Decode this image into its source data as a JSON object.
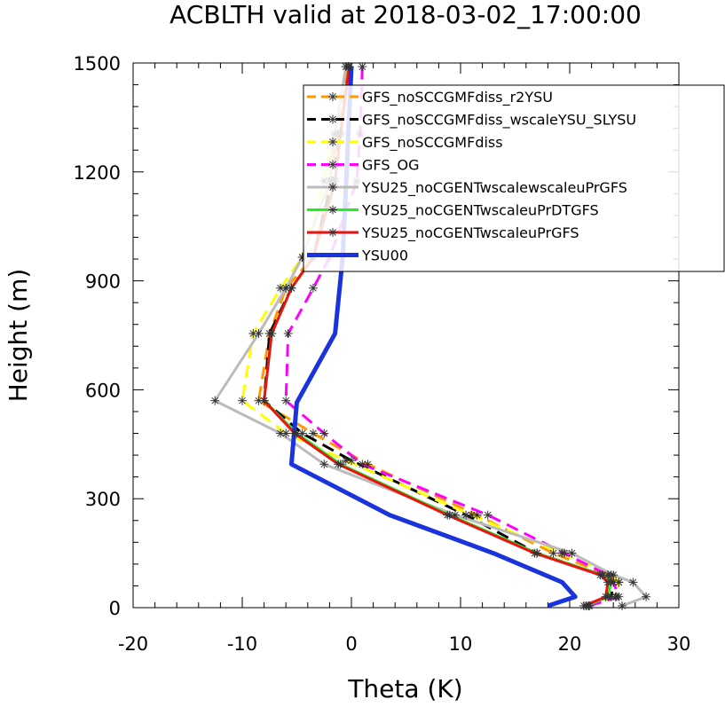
{
  "chart_data": {
    "type": "line",
    "title": "ACBLTH valid at 2018-03-02_17:00:00",
    "xlabel": "Theta (K)",
    "ylabel": "Height (m)",
    "xlim": [
      -20,
      30
    ],
    "ylim": [
      0,
      1500
    ],
    "xticks": [
      "-20",
      "-10",
      "0",
      "10",
      "20",
      "30"
    ],
    "yticks": [
      "0",
      "300",
      "600",
      "900",
      "1200",
      "1500"
    ],
    "grid": false,
    "legend_position": "top-right",
    "series": [
      {
        "name": "GFS_noSCCGMFdiss_r2YSU",
        "color": "#ff9900",
        "dash": "dashed",
        "marker": "asterisk",
        "x": [
          21.8,
          24.2,
          24.5,
          23.5,
          18.5,
          11.5,
          1.5,
          -3.5,
          -8.5,
          -7.5,
          -6.0,
          -3.5,
          -2.0,
          -1.2,
          -0.3
        ],
        "y": [
          5,
          30,
          70,
          90,
          150,
          255,
          395,
          480,
          570,
          755,
          880,
          965,
          1175,
          1305,
          1490
        ]
      },
      {
        "name": "GFS_noSCCGMFdiss_wscaleYSU_SLYSU",
        "color": "#000000",
        "dash": "dashed",
        "marker": "asterisk",
        "x": [
          21.5,
          23.8,
          24.0,
          23.0,
          17.0,
          10.5,
          0.0,
          -4.5,
          -8.0,
          -7.5,
          -5.5,
          -3.5,
          -1.8,
          -1.0,
          -0.2
        ],
        "y": [
          5,
          30,
          70,
          90,
          150,
          255,
          405,
          480,
          570,
          755,
          880,
          965,
          1175,
          1305,
          1490
        ]
      },
      {
        "name": "GFS_noSCCGMFdiss",
        "color": "#ffff00",
        "dash": "dashed",
        "marker": "asterisk",
        "x": [
          21.7,
          24.3,
          24.5,
          23.8,
          19.3,
          11.0,
          -0.5,
          -6.0,
          -10.0,
          -9.0,
          -6.5,
          -4.5,
          -2.5,
          -1.5,
          -0.5
        ],
        "y": [
          5,
          30,
          70,
          90,
          150,
          255,
          405,
          480,
          570,
          755,
          880,
          965,
          1175,
          1305,
          1490
        ]
      },
      {
        "name": "GFS_OG",
        "color": "#ff00ff",
        "dash": "dashed",
        "marker": "asterisk",
        "x": [
          21.8,
          24.5,
          24.0,
          23.5,
          19.5,
          12.5,
          1.0,
          -2.5,
          -6.0,
          -5.8,
          -3.5,
          -2.0,
          0.5,
          0.8,
          1.0
        ],
        "y": [
          5,
          30,
          70,
          90,
          150,
          255,
          395,
          480,
          570,
          755,
          880,
          965,
          1175,
          1305,
          1490
        ]
      },
      {
        "name": "YSU25_noCGENTwscalewscaleuPrGFS",
        "color": "#bbbbbb",
        "dash": "solid",
        "marker": "asterisk",
        "x": [
          24.8,
          27.0,
          25.8,
          24.0,
          20.2,
          9.5,
          -2.5,
          -6.5,
          -12.5,
          -8.5,
          -6.0,
          -4.5,
          -2.0,
          -1.5,
          -0.5
        ],
        "y": [
          5,
          30,
          70,
          90,
          150,
          255,
          395,
          480,
          570,
          755,
          880,
          965,
          1175,
          1305,
          1490
        ]
      },
      {
        "name": "YSU25_noCGENTwscaleuPrDTGFS",
        "color": "#22ee22",
        "dash": "solid",
        "marker": "asterisk",
        "x": [
          21.5,
          23.5,
          23.8,
          23.0,
          17.0,
          9.0,
          -1.0,
          -5.0,
          -8.0,
          -7.3,
          -5.5,
          -3.5,
          -1.5,
          -1.0,
          -0.2
        ],
        "y": [
          5,
          30,
          70,
          90,
          150,
          255,
          395,
          480,
          570,
          755,
          880,
          965,
          1175,
          1305,
          1490
        ]
      },
      {
        "name": "YSU25_noCGENTwscaleuPrGFS",
        "color": "#ee1111",
        "dash": "solid",
        "marker": "asterisk",
        "x": [
          21.3,
          23.3,
          23.5,
          22.8,
          16.8,
          8.8,
          -1.2,
          -5.2,
          -8.0,
          -7.3,
          -5.5,
          -3.5,
          -1.5,
          -1.0,
          -0.2
        ],
        "y": [
          5,
          30,
          70,
          90,
          150,
          255,
          395,
          480,
          570,
          755,
          880,
          965,
          1175,
          1305,
          1490
        ]
      },
      {
        "name": "YSU00",
        "color": "#1a33dd",
        "dash": "solid",
        "marker": "none",
        "x": [
          18.0,
          20.5,
          19.3,
          13.0,
          3.5,
          -5.5,
          -5.0,
          -1.5,
          -0.8,
          0.0
        ],
        "y": [
          5,
          30,
          70,
          150,
          255,
          395,
          565,
          755,
          965,
          1490
        ]
      }
    ]
  }
}
